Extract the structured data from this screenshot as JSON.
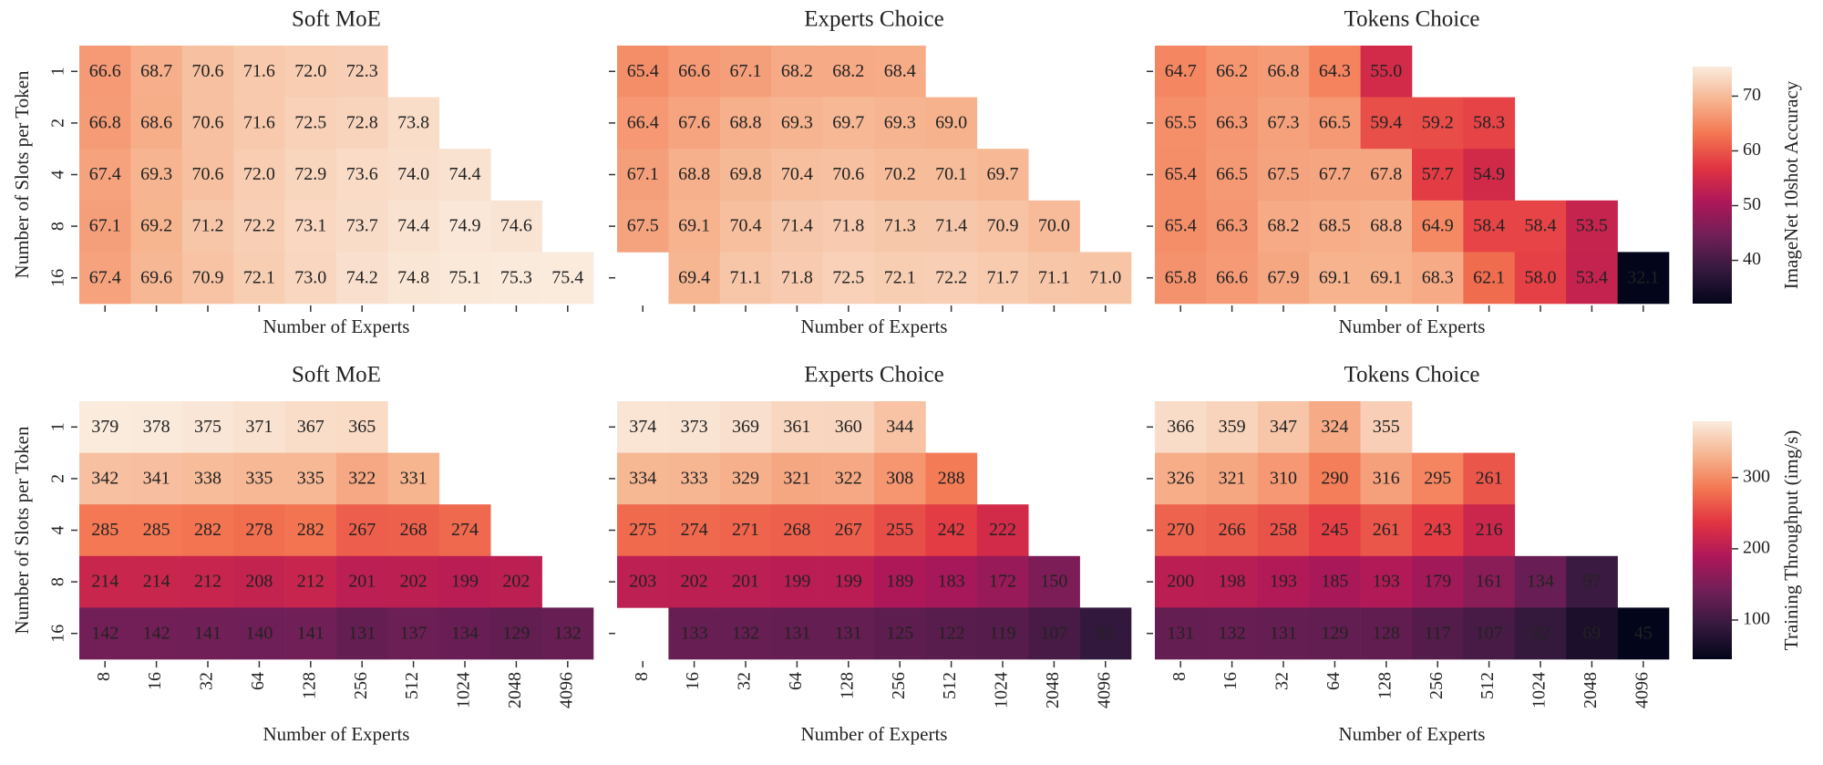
{
  "chart_data": [
    {
      "type": "heatmap",
      "title": "Soft MoE",
      "xlabel": "Number of Experts",
      "ylabel": "Number of Slots per Token",
      "y_categories": [
        "1",
        "2",
        "4",
        "8",
        "16"
      ],
      "values": [
        [
          66.6,
          68.7,
          70.6,
          71.6,
          72.0,
          72.3,
          null,
          null,
          null,
          null
        ],
        [
          66.8,
          68.6,
          70.6,
          71.6,
          72.5,
          72.8,
          73.8,
          null,
          null,
          null
        ],
        [
          67.4,
          69.3,
          70.6,
          72.0,
          72.9,
          73.6,
          74.0,
          74.4,
          null,
          null
        ],
        [
          67.1,
          69.2,
          71.2,
          72.2,
          73.1,
          73.7,
          74.4,
          74.9,
          74.6,
          null
        ],
        [
          67.4,
          69.6,
          70.9,
          72.1,
          73.0,
          74.2,
          74.8,
          75.1,
          75.3,
          75.4
        ]
      ],
      "value_labels": [
        [
          "66.6",
          "68.7",
          "70.6",
          "71.6",
          "72.0",
          "72.3",
          null,
          null,
          null,
          null
        ],
        [
          "66.8",
          "68.6",
          "70.6",
          "71.6",
          "72.5",
          "72.8",
          "73.8",
          null,
          null,
          null
        ],
        [
          "67.4",
          "69.3",
          "70.6",
          "72.0",
          "72.9",
          "73.6",
          "74.0",
          "74.4",
          null,
          null
        ],
        [
          "67.1",
          "69.2",
          "71.2",
          "72.2",
          "73.1",
          "73.7",
          "74.4",
          "74.9",
          "74.6",
          null
        ],
        [
          "67.4",
          "69.6",
          "70.9",
          "72.1",
          "73.0",
          "74.2",
          "74.8",
          "75.1",
          "75.3",
          "75.4"
        ]
      ]
    },
    {
      "type": "heatmap",
      "title": "Experts Choice",
      "xlabel": "Number of Experts",
      "values": [
        [
          65.4,
          66.6,
          67.1,
          68.2,
          68.2,
          68.4,
          null,
          null,
          null,
          null
        ],
        [
          66.4,
          67.6,
          68.8,
          69.3,
          69.7,
          69.3,
          69.0,
          null,
          null,
          null
        ],
        [
          67.1,
          68.8,
          69.8,
          70.4,
          70.6,
          70.2,
          70.1,
          69.7,
          null,
          null
        ],
        [
          67.5,
          69.1,
          70.4,
          71.4,
          71.8,
          71.3,
          71.4,
          70.9,
          70.0,
          null
        ],
        [
          null,
          69.4,
          71.1,
          71.8,
          72.5,
          72.1,
          72.2,
          71.7,
          71.1,
          71.0
        ]
      ],
      "value_labels": [
        [
          "65.4",
          "66.6",
          "67.1",
          "68.2",
          "68.2",
          "68.4",
          null,
          null,
          null,
          null
        ],
        [
          "66.4",
          "67.6",
          "68.8",
          "69.3",
          "69.7",
          "69.3",
          "69.0",
          null,
          null,
          null
        ],
        [
          "67.1",
          "68.8",
          "69.8",
          "70.4",
          "70.6",
          "70.2",
          "70.1",
          "69.7",
          null,
          null
        ],
        [
          "67.5",
          "69.1",
          "70.4",
          "71.4",
          "71.8",
          "71.3",
          "71.4",
          "70.9",
          "70.0",
          null
        ],
        [
          null,
          "69.4",
          "71.1",
          "71.8",
          "72.5",
          "72.1",
          "72.2",
          "71.7",
          "71.1",
          "71.0"
        ]
      ]
    },
    {
      "type": "heatmap",
      "title": "Tokens Choice",
      "xlabel": "Number of Experts",
      "values": [
        [
          64.7,
          66.2,
          66.8,
          64.3,
          55.0,
          null,
          null,
          null,
          null,
          null
        ],
        [
          65.5,
          66.3,
          67.3,
          66.5,
          59.4,
          59.2,
          58.3,
          null,
          null,
          null
        ],
        [
          65.4,
          66.5,
          67.5,
          67.7,
          67.8,
          57.7,
          54.9,
          null,
          null,
          null
        ],
        [
          65.4,
          66.3,
          68.2,
          68.5,
          68.8,
          64.9,
          58.4,
          58.4,
          53.5,
          null
        ],
        [
          65.8,
          66.6,
          67.9,
          69.1,
          69.1,
          68.3,
          62.1,
          58.0,
          53.4,
          32.1
        ]
      ],
      "value_labels": [
        [
          "64.7",
          "66.2",
          "66.8",
          "64.3",
          "55.0",
          null,
          null,
          null,
          null,
          null
        ],
        [
          "65.5",
          "66.3",
          "67.3",
          "66.5",
          "59.4",
          "59.2",
          "58.3",
          null,
          null,
          null
        ],
        [
          "65.4",
          "66.5",
          "67.5",
          "67.7",
          "67.8",
          "57.7",
          "54.9",
          null,
          null,
          null
        ],
        [
          "65.4",
          "66.3",
          "68.2",
          "68.5",
          "68.8",
          "64.9",
          "58.4",
          "58.4",
          "53.5",
          null
        ],
        [
          "65.8",
          "66.6",
          "67.9",
          "69.1",
          "69.1",
          "68.3",
          "62.1",
          "58.0",
          "53.4",
          "32.1"
        ]
      ],
      "colorbar": {
        "label": "ImageNet 10shot Accuracy",
        "lim": [
          32.1,
          75.4
        ],
        "ticks": [
          40,
          50,
          60,
          70
        ],
        "colors": [
          "#03051a",
          "#35193e",
          "#701f57",
          "#ad1759",
          "#e13342",
          "#f37651",
          "#f6b48f",
          "#faebdd"
        ]
      }
    },
    {
      "type": "heatmap",
      "title": "Soft MoE",
      "xlabel": "Number of Experts",
      "ylabel": "Number of Slots per Token",
      "categories": [
        "8",
        "16",
        "32",
        "64",
        "128",
        "256",
        "512",
        "1024",
        "2048",
        "4096"
      ],
      "y_categories": [
        "1",
        "2",
        "4",
        "8",
        "16"
      ],
      "values": [
        [
          379,
          378,
          375,
          371,
          367,
          365,
          null,
          null,
          null,
          null
        ],
        [
          342,
          341,
          338,
          335,
          335,
          322,
          331,
          null,
          null,
          null
        ],
        [
          285,
          285,
          282,
          278,
          282,
          267,
          268,
          274,
          null,
          null
        ],
        [
          214,
          214,
          212,
          208,
          212,
          201,
          202,
          199,
          202,
          null
        ],
        [
          142,
          142,
          141,
          140,
          141,
          131,
          137,
          134,
          129,
          132
        ]
      ]
    },
    {
      "type": "heatmap",
      "title": "Experts Choice",
      "xlabel": "Number of Experts",
      "categories": [
        "8",
        "16",
        "32",
        "64",
        "128",
        "256",
        "512",
        "1024",
        "2048",
        "4096"
      ],
      "values": [
        [
          374,
          373,
          369,
          361,
          360,
          344,
          null,
          null,
          null,
          null
        ],
        [
          334,
          333,
          329,
          321,
          322,
          308,
          288,
          null,
          null,
          null
        ],
        [
          275,
          274,
          271,
          268,
          267,
          255,
          242,
          222,
          null,
          null
        ],
        [
          203,
          202,
          201,
          199,
          199,
          189,
          183,
          172,
          150,
          null
        ],
        [
          null,
          133,
          132,
          131,
          131,
          125,
          122,
          119,
          107,
          91
        ]
      ]
    },
    {
      "type": "heatmap",
      "title": "Tokens Choice",
      "xlabel": "Number of Experts",
      "categories": [
        "8",
        "16",
        "32",
        "64",
        "128",
        "256",
        "512",
        "1024",
        "2048",
        "4096"
      ],
      "values": [
        [
          366,
          359,
          347,
          324,
          355,
          null,
          null,
          null,
          null,
          null
        ],
        [
          326,
          321,
          310,
          290,
          316,
          295,
          261,
          null,
          null,
          null
        ],
        [
          270,
          266,
          258,
          245,
          261,
          243,
          216,
          null,
          null,
          null
        ],
        [
          200,
          198,
          193,
          185,
          193,
          179,
          161,
          134,
          97,
          null
        ],
        [
          131,
          132,
          131,
          129,
          128,
          117,
          107,
          92,
          69,
          45
        ]
      ],
      "colorbar": {
        "label": "Training Throughput (img/s)",
        "lim": [
          45,
          379
        ],
        "ticks": [
          100,
          200,
          300
        ],
        "colors": [
          "#03051a",
          "#35193e",
          "#701f57",
          "#ad1759",
          "#e13342",
          "#f37651",
          "#f6b48f",
          "#faebdd"
        ]
      }
    }
  ]
}
